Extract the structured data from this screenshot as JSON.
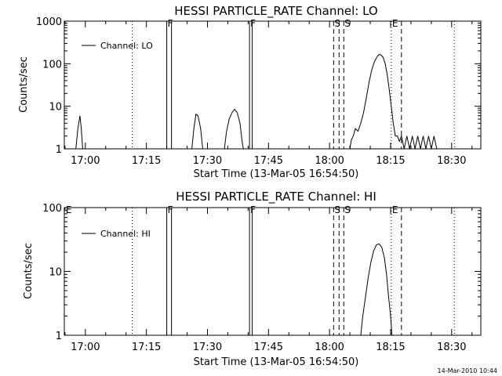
{
  "stamp": "14-Mar-2010 10:44",
  "chart_data": [
    {
      "type": "line",
      "title": "HESSI PARTICLE_RATE Channel: LO",
      "xlabel": "Start Time (13-Mar-05 16:54:50)",
      "ylabel": "Counts/sec",
      "y_scale": "log",
      "ylim": [
        1,
        1000
      ],
      "y_ticks": [
        {
          "v": 1,
          "label": "1"
        },
        {
          "v": 10,
          "label": "10"
        },
        {
          "v": 100,
          "label": "100"
        },
        {
          "v": 1000,
          "label": "1000"
        }
      ],
      "xlim": [
        "16:54:50",
        "18:37:10"
      ],
      "x_ticks": [
        {
          "t": "17:00",
          "label": "17:00"
        },
        {
          "t": "17:15",
          "label": "17:15"
        },
        {
          "t": "17:30",
          "label": "17:30"
        },
        {
          "t": "17:45",
          "label": "17:45"
        },
        {
          "t": "18:00",
          "label": "18:00"
        },
        {
          "t": "18:15",
          "label": "18:15"
        },
        {
          "t": "18:30",
          "label": "18:30"
        }
      ],
      "legend": {
        "label": "Channel: LO",
        "position": "top-left"
      },
      "markers": [
        {
          "t": "17:11:30",
          "style": "dotted",
          "label": ""
        },
        {
          "t": "17:20:00",
          "style": "solid",
          "label": "F"
        },
        {
          "t": "17:21:10",
          "style": "solid",
          "label": ""
        },
        {
          "t": "17:40:20",
          "style": "solid",
          "label": "F"
        },
        {
          "t": "17:41:00",
          "style": "solid",
          "label": ""
        },
        {
          "t": "18:01:00",
          "style": "dashed",
          "label": "S"
        },
        {
          "t": "18:02:20",
          "style": "dashed",
          "label": ""
        },
        {
          "t": "18:03:30",
          "style": "dashed",
          "label": "S"
        },
        {
          "t": "18:15:10",
          "style": "dotted",
          "label": "E"
        },
        {
          "t": "18:17:40",
          "style": "dashed",
          "label": ""
        },
        {
          "t": "18:30:40",
          "style": "dotted",
          "label": ""
        }
      ],
      "series": [
        {
          "segments": [
            [
              [
                "16:57:40",
                1
              ],
              [
                "16:58:10",
                3
              ],
              [
                "16:58:40",
                6
              ],
              [
                "16:59:00",
                3
              ],
              [
                "16:59:20",
                1
              ]
            ],
            [
              [
                "17:26:10",
                1
              ],
              [
                "17:26:40",
                3
              ],
              [
                "17:27:10",
                6.5
              ],
              [
                "17:27:40",
                6
              ],
              [
                "17:28:20",
                3
              ],
              [
                "17:28:50",
                1
              ]
            ],
            [
              [
                "17:34:10",
                1
              ],
              [
                "17:34:40",
                2.5
              ],
              [
                "17:35:20",
                5
              ],
              [
                "17:36:00",
                7
              ],
              [
                "17:36:40",
                8.5
              ],
              [
                "17:37:20",
                7
              ],
              [
                "17:38:00",
                4
              ],
              [
                "17:38:30",
                1.5
              ],
              [
                "17:38:50",
                1
              ]
            ],
            [
              [
                "18:05:00",
                1
              ],
              [
                "18:05:20",
                1.6
              ],
              [
                "18:05:50",
                2
              ],
              [
                "18:06:20",
                3
              ],
              [
                "18:07:00",
                2.6
              ],
              [
                "18:07:40",
                4
              ],
              [
                "18:08:20",
                7
              ],
              [
                "18:09:00",
                15
              ],
              [
                "18:09:40",
                35
              ],
              [
                "18:10:20",
                70
              ],
              [
                "18:11:00",
                110
              ],
              [
                "18:11:40",
                145
              ],
              [
                "18:12:10",
                165
              ],
              [
                "18:12:40",
                160
              ],
              [
                "18:13:10",
                140
              ],
              [
                "18:13:40",
                100
              ],
              [
                "18:14:10",
                55
              ],
              [
                "18:14:40",
                25
              ],
              [
                "18:15:10",
                10
              ],
              [
                "18:15:40",
                4
              ],
              [
                "18:16:10",
                2
              ],
              [
                "18:16:40",
                2
              ],
              [
                "18:17:10",
                1.5
              ],
              [
                "18:17:40",
                2
              ],
              [
                "18:18:20",
                1
              ],
              [
                "18:19:00",
                2
              ],
              [
                "18:19:40",
                1
              ],
              [
                "18:20:20",
                2
              ],
              [
                "18:21:00",
                1
              ],
              [
                "18:21:40",
                2
              ],
              [
                "18:22:20",
                1
              ],
              [
                "18:23:00",
                2
              ],
              [
                "18:23:40",
                1
              ],
              [
                "18:24:20",
                2
              ],
              [
                "18:25:00",
                1
              ],
              [
                "18:25:40",
                2
              ],
              [
                "18:26:20",
                1
              ]
            ]
          ]
        }
      ]
    },
    {
      "type": "line",
      "title": "HESSI PARTICLE_RATE Channel: HI",
      "xlabel": "Start Time (13-Mar-05 16:54:50)",
      "ylabel": "Counts/sec",
      "y_scale": "log",
      "ylim": [
        1,
        100
      ],
      "y_ticks": [
        {
          "v": 1,
          "label": "1"
        },
        {
          "v": 10,
          "label": "10"
        },
        {
          "v": 100,
          "label": "100"
        }
      ],
      "xlim": [
        "16:54:50",
        "18:37:10"
      ],
      "x_ticks": [
        {
          "t": "17:00",
          "label": "17:00"
        },
        {
          "t": "17:15",
          "label": "17:15"
        },
        {
          "t": "17:30",
          "label": "17:30"
        },
        {
          "t": "17:45",
          "label": "17:45"
        },
        {
          "t": "18:00",
          "label": "18:00"
        },
        {
          "t": "18:15",
          "label": "18:15"
        },
        {
          "t": "18:30",
          "label": "18:30"
        }
      ],
      "legend": {
        "label": "Channel: HI",
        "position": "top-left"
      },
      "markers": [
        {
          "t": "16:55:00",
          "style": "none",
          "label": "E"
        },
        {
          "t": "17:11:30",
          "style": "dotted",
          "label": ""
        },
        {
          "t": "17:20:00",
          "style": "solid",
          "label": "F"
        },
        {
          "t": "17:21:10",
          "style": "solid",
          "label": ""
        },
        {
          "t": "17:40:20",
          "style": "solid",
          "label": "F"
        },
        {
          "t": "17:41:00",
          "style": "solid",
          "label": ""
        },
        {
          "t": "18:01:00",
          "style": "dashed",
          "label": "S"
        },
        {
          "t": "18:02:20",
          "style": "dashed",
          "label": ""
        },
        {
          "t": "18:03:30",
          "style": "dashed",
          "label": "S"
        },
        {
          "t": "18:15:10",
          "style": "dotted",
          "label": "E"
        },
        {
          "t": "18:17:40",
          "style": "dashed",
          "label": ""
        },
        {
          "t": "18:30:40",
          "style": "dotted",
          "label": ""
        }
      ],
      "series": [
        {
          "segments": [
            [
              [
                "18:07:40",
                1
              ],
              [
                "18:08:10",
                2
              ],
              [
                "18:08:50",
                4
              ],
              [
                "18:09:30",
                8
              ],
              [
                "18:10:10",
                14
              ],
              [
                "18:10:50",
                21
              ],
              [
                "18:11:30",
                26
              ],
              [
                "18:12:10",
                27
              ],
              [
                "18:12:50",
                24
              ],
              [
                "18:13:30",
                16
              ],
              [
                "18:14:00",
                9
              ],
              [
                "18:14:30",
                4
              ],
              [
                "18:15:00",
                2
              ],
              [
                "18:15:20",
                1
              ]
            ]
          ]
        }
      ]
    }
  ]
}
